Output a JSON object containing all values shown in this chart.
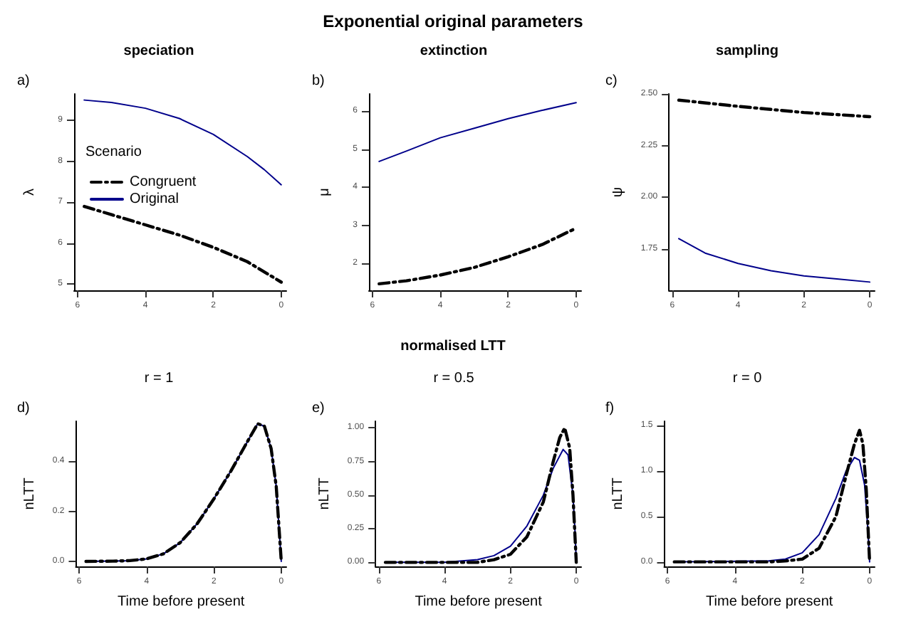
{
  "chart_data": [
    {
      "type": "line",
      "title": "speciation",
      "ylabel": "λ",
      "annotations": [
        "a)",
        "Exponential original parameters"
      ],
      "legend": "top left",
      "legend_title": "Scenario",
      "grid": false,
      "marker": "none",
      "xlim": [
        6.1,
        -0.15
      ],
      "xticks": [
        6,
        4,
        2,
        0
      ],
      "ylim": [
        4.85,
        9.65
      ],
      "yticks": [
        5,
        6,
        7,
        8,
        9
      ],
      "series": [
        {
          "name": "Congruent",
          "color": "#000000",
          "line_style": "dashed",
          "x": [
            5.8,
            5,
            4,
            3,
            2,
            1,
            0
          ],
          "values": [
            6.9,
            6.7,
            6.45,
            6.2,
            5.9,
            5.55,
            5.05
          ]
        },
        {
          "name": "Original",
          "color": "#00008b",
          "line_style": "solid",
          "x": [
            5.8,
            5,
            4,
            3,
            2,
            1,
            0.5,
            0
          ],
          "values": [
            9.5,
            9.44,
            9.3,
            9.05,
            8.66,
            8.12,
            7.8,
            7.43
          ]
        }
      ]
    },
    {
      "type": "line",
      "title": "extinction",
      "ylabel": "μ",
      "annotations": [
        "b)"
      ],
      "legend": false,
      "grid": false,
      "marker": "none",
      "xlim": [
        6.1,
        -0.15
      ],
      "xticks": [
        6,
        4,
        2,
        0
      ],
      "ylim": [
        1.3,
        6.45
      ],
      "yticks": [
        2,
        3,
        4,
        5,
        6
      ],
      "series": [
        {
          "color": "#000000",
          "line_style": "dashed",
          "x": [
            5.8,
            5,
            4,
            3,
            2,
            1,
            0
          ],
          "values": [
            1.47,
            1.55,
            1.7,
            1.9,
            2.18,
            2.5,
            2.93
          ]
        },
        {
          "color": "#00008b",
          "line_style": "solid",
          "x": [
            5.8,
            5,
            4,
            3,
            2,
            1,
            0
          ],
          "values": [
            4.68,
            4.95,
            5.3,
            5.55,
            5.8,
            6.02,
            6.22
          ]
        }
      ]
    },
    {
      "type": "line",
      "title": "sampling",
      "ylabel": "ψ",
      "annotations": [
        "c)"
      ],
      "legend": false,
      "grid": false,
      "marker": "none",
      "xlim": [
        6.1,
        -0.15
      ],
      "xticks": [
        6,
        4,
        2,
        0
      ],
      "ylim": [
        1.55,
        2.5
      ],
      "yticks": [
        {
          "value": 1.75,
          "label": "1.75"
        },
        {
          "value": 2,
          "label": "2.00"
        },
        {
          "value": 2.25,
          "label": "2.25"
        },
        {
          "value": 2.5,
          "label": "2.50"
        }
      ],
      "series": [
        {
          "color": "#000000",
          "line_style": "dashed",
          "x": [
            5.8,
            4,
            2,
            0
          ],
          "values": [
            2.47,
            2.44,
            2.41,
            2.39
          ]
        },
        {
          "color": "#00008b",
          "line_style": "solid",
          "x": [
            5.8,
            5,
            4,
            3,
            2,
            1,
            0
          ],
          "values": [
            1.8,
            1.73,
            1.68,
            1.645,
            1.62,
            1.605,
            1.59
          ]
        }
      ]
    },
    {
      "type": "line",
      "title": "r = 1",
      "xlabel": "Time before present",
      "ylabel": "nLTT",
      "annotations": [
        "d)",
        "normalised LTT"
      ],
      "legend": false,
      "grid": false,
      "marker": "none",
      "xlim": [
        6.1,
        -0.15
      ],
      "xticks": [
        6,
        4,
        2,
        0
      ],
      "ylim": [
        -0.02,
        0.56
      ],
      "yticks": [
        {
          "value": 0,
          "label": "0.0"
        },
        {
          "value": 0.2,
          "label": "0.2"
        },
        {
          "value": 0.4,
          "label": "0.4"
        }
      ],
      "series": [
        {
          "color": "#000000",
          "line_style": "dashed",
          "x": [
            5.8,
            5,
            4.5,
            4,
            3.5,
            3,
            2.5,
            2,
            1.5,
            1,
            0.7,
            0.5,
            0.3,
            0.15,
            0.05,
            0
          ],
          "values": [
            0,
            0.001,
            0.003,
            0.01,
            0.03,
            0.075,
            0.15,
            0.25,
            0.36,
            0.48,
            0.55,
            0.54,
            0.45,
            0.3,
            0.1,
            0
          ]
        },
        {
          "color": "#00008b",
          "line_style": "solid",
          "x": [
            5.8,
            5,
            4.5,
            4,
            3.5,
            3,
            2.5,
            2,
            1.5,
            1,
            0.7,
            0.5,
            0.3,
            0.15,
            0.05,
            0
          ],
          "values": [
            0,
            0.001,
            0.003,
            0.01,
            0.03,
            0.075,
            0.15,
            0.25,
            0.36,
            0.48,
            0.55,
            0.54,
            0.45,
            0.3,
            0.1,
            0
          ]
        }
      ]
    },
    {
      "type": "line",
      "title": "r = 0.5",
      "xlabel": "Time before present",
      "ylabel": "nLTT",
      "annotations": [
        "e)"
      ],
      "legend": false,
      "grid": false,
      "marker": "none",
      "xlim": [
        6.1,
        -0.15
      ],
      "xticks": [
        6,
        4,
        2,
        0
      ],
      "ylim": [
        -0.03,
        1.05
      ],
      "yticks": [
        {
          "value": 0,
          "label": "0.00"
        },
        {
          "value": 0.25,
          "label": "0.25"
        },
        {
          "value": 0.5,
          "label": "0.50"
        },
        {
          "value": 0.75,
          "label": "0.75"
        },
        {
          "value": 1,
          "label": "1.00"
        }
      ],
      "series": [
        {
          "color": "#000000",
          "line_style": "dashed",
          "x": [
            5.8,
            3,
            2.5,
            2,
            1.5,
            1,
            0.7,
            0.5,
            0.35,
            0.2,
            0.1,
            0
          ],
          "values": [
            0,
            0,
            0.02,
            0.06,
            0.19,
            0.45,
            0.75,
            0.93,
            1,
            0.85,
            0.5,
            0
          ]
        },
        {
          "color": "#00008b",
          "line_style": "solid",
          "x": [
            5.8,
            4,
            3,
            2.5,
            2,
            1.5,
            1,
            0.7,
            0.4,
            0.25,
            0.1,
            0.03,
            0
          ],
          "values": [
            0,
            0,
            0.02,
            0.05,
            0.12,
            0.27,
            0.5,
            0.7,
            0.84,
            0.8,
            0.5,
            0.2,
            0
          ]
        }
      ]
    },
    {
      "type": "line",
      "title": "r = 0",
      "xlabel": "Time before present",
      "ylabel": "nLTT",
      "annotations": [
        "f)"
      ],
      "legend": false,
      "grid": false,
      "marker": "none",
      "xlim": [
        6.1,
        -0.15
      ],
      "xticks": [
        6,
        4,
        2,
        0
      ],
      "ylim": [
        -0.05,
        1.55
      ],
      "yticks": [
        {
          "value": 0,
          "label": "0.0"
        },
        {
          "value": 0.5,
          "label": "0.5"
        },
        {
          "value": 1,
          "label": "1.0"
        },
        {
          "value": 1.5,
          "label": "1.5"
        }
      ],
      "series": [
        {
          "color": "#000000",
          "line_style": "dashed",
          "x": [
            5.8,
            3,
            2.5,
            2,
            1.5,
            1,
            0.7,
            0.45,
            0.3,
            0.2,
            0.1,
            0
          ],
          "values": [
            0,
            0,
            0.01,
            0.03,
            0.15,
            0.5,
            0.95,
            1.3,
            1.45,
            1.3,
            0.8,
            0
          ]
        },
        {
          "color": "#00008b",
          "line_style": "solid",
          "x": [
            5.8,
            3,
            2.5,
            2,
            1.5,
            1,
            0.7,
            0.45,
            0.3,
            0.15,
            0.05,
            0
          ],
          "values": [
            0,
            0.01,
            0.03,
            0.1,
            0.3,
            0.7,
            1,
            1.15,
            1.12,
            0.85,
            0.35,
            0
          ]
        }
      ]
    }
  ]
}
